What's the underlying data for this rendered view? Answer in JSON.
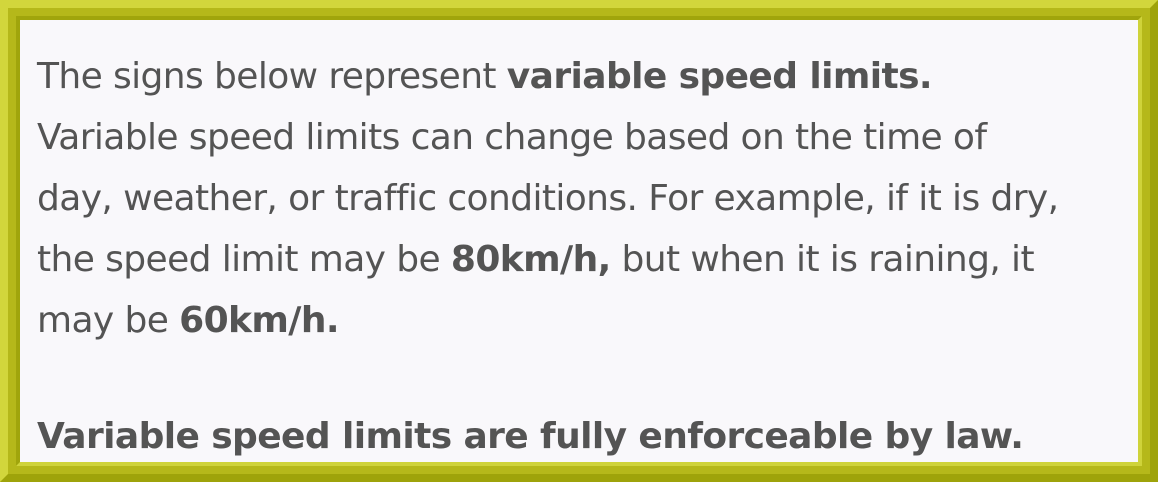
{
  "notice": {
    "para1": {
      "intro": "The signs below represent ",
      "term": "variable speed limits.",
      "line2": "Variable speed limits can change based on the time of",
      "line3": "day, weather, or traffic conditions. For example, if it is dry,",
      "line4_start": "the speed limit may be ",
      "dry_speed": "80km/h,",
      "line4_end": " but when it is raining, it",
      "line5_start": "may be ",
      "rain_speed": "60km/h."
    },
    "para2": {
      "statement": "Variable speed limits are fully enforceable by law."
    }
  },
  "colors": {
    "frame": "#b5b81a",
    "panel": "#f9f8fb",
    "text": "#545454"
  }
}
